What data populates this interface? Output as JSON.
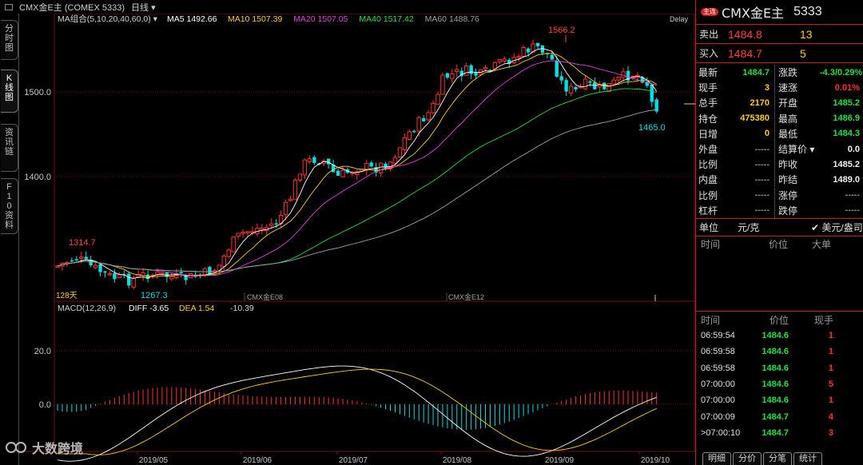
{
  "topbar": {
    "instrument": "CMX金E主 (COMEX 5333)",
    "period": "日线"
  },
  "left_tabs": [
    "分时图",
    "K线图",
    "资讯链",
    "F10资料"
  ],
  "ma_legend": {
    "label": "MA组合(5,10,20,40,60,0)",
    "items": [
      {
        "name": "MA5",
        "value": "1492.66",
        "color": "#ffffff"
      },
      {
        "name": "MA10",
        "value": "1507.39",
        "color": "#ffd000"
      },
      {
        "name": "MA20",
        "value": "1507.05",
        "color": "#e040e0"
      },
      {
        "name": "MA40",
        "value": "1517.42",
        "color": "#20e040"
      },
      {
        "name": "MA60",
        "value": "1488.76",
        "color": "#a0a0a0"
      }
    ],
    "delay": "Delay"
  },
  "macd_legend": {
    "label": "MACD(12,26,9)",
    "diff": "DIFF -3.65",
    "dea": "DEA 1.54",
    "macd": "-10.39"
  },
  "chart_data": {
    "type": "candlestick",
    "y_ticks": [
      "1500.0",
      "1400.0"
    ],
    "macd_y_ticks": [
      "20.0",
      "0.0"
    ],
    "x_ticks": [
      "2019/05",
      "2019/06",
      "2019/07",
      "2019/08",
      "2019/09",
      "2019/10"
    ],
    "annotations": [
      "1566.2",
      "1465.0",
      "1314.7",
      "1267.3",
      "128天",
      "CMX金E08",
      "CMX金E12"
    ],
    "price_scale": [
      1314.7,
      1267.3,
      1566.2,
      1465.0
    ]
  },
  "colors": {
    "up": "#ff3030",
    "down": "#00e0e0",
    "grid": "#7a1010"
  },
  "quote_panel": {
    "badge": "主连",
    "name": "CMX金E主",
    "code": "5333",
    "sell": {
      "label": "卖出",
      "price": "1484.8",
      "vol": "13"
    },
    "buy": {
      "label": "买入",
      "price": "1484.7",
      "vol": "5"
    },
    "rows": [
      {
        "k": "最新",
        "v": "1484.7",
        "vc": "green",
        "k2": "涨跌",
        "v2": "-4.3/0.29%",
        "v2c": "green"
      },
      {
        "k": "现手",
        "v": "3",
        "vc": "yellow",
        "k2": "速涨",
        "v2": "0.01%",
        "v2c": "red"
      },
      {
        "k": "总手",
        "v": "2170",
        "vc": "yellow",
        "k2": "开盘",
        "v2": "1485.2",
        "v2c": "green"
      },
      {
        "k": "持仓",
        "v": "475380",
        "vc": "yellow",
        "k2": "最高",
        "v2": "1486.9",
        "v2c": "green"
      },
      {
        "k": "日增",
        "v": "0",
        "vc": "yellow",
        "k2": "最低",
        "v2": "1484.3",
        "v2c": "green"
      },
      {
        "k": "外盘",
        "v": "-----",
        "vc": "gray",
        "k2": "结算价 ▾",
        "v2": "0.0",
        "v2c": "white"
      },
      {
        "k": "比例",
        "v": "-----",
        "vc": "gray",
        "k2": "昨收",
        "v2": "1485.2",
        "v2c": "white"
      },
      {
        "k": "内盘",
        "v": "-----",
        "vc": "gray",
        "k2": "昨结",
        "v2": "1489.0",
        "v2c": "white"
      },
      {
        "k": "比例",
        "v": "-----",
        "vc": "gray",
        "k2": "涨停",
        "v2": "-----",
        "v2c": "gray"
      },
      {
        "k": "杠杆",
        "v": "-----",
        "vc": "gray",
        "k2": "跌停",
        "v2": "-----",
        "v2c": "gray"
      }
    ],
    "units": {
      "label": "单位",
      "unit1": "元/克",
      "unit2": "✔ 美元/盎司"
    },
    "depth_header": [
      "时间",
      "价位",
      "大单"
    ],
    "ticks_header": [
      "时间",
      "价位",
      "现手"
    ],
    "ticks": [
      {
        "t": "06:59:54",
        "p": "1484.6",
        "q": "1"
      },
      {
        "t": "06:59:58",
        "p": "1484.6",
        "q": "1"
      },
      {
        "t": "06:59:58",
        "p": "1484.6",
        "q": "1"
      },
      {
        "t": "07:00:00",
        "p": "1484.6",
        "q": "5"
      },
      {
        "t": "07:00:00",
        "p": "1484.6",
        "q": "1"
      },
      {
        "t": "07:00:09",
        "p": "1484.7",
        "q": "4"
      },
      {
        "t": "07:00:10",
        "p": "1484.7",
        "q": "3"
      }
    ],
    "bottom_tabs": [
      "明细",
      "分价",
      "分笔",
      "统计"
    ]
  },
  "watermark": "大数跨境"
}
